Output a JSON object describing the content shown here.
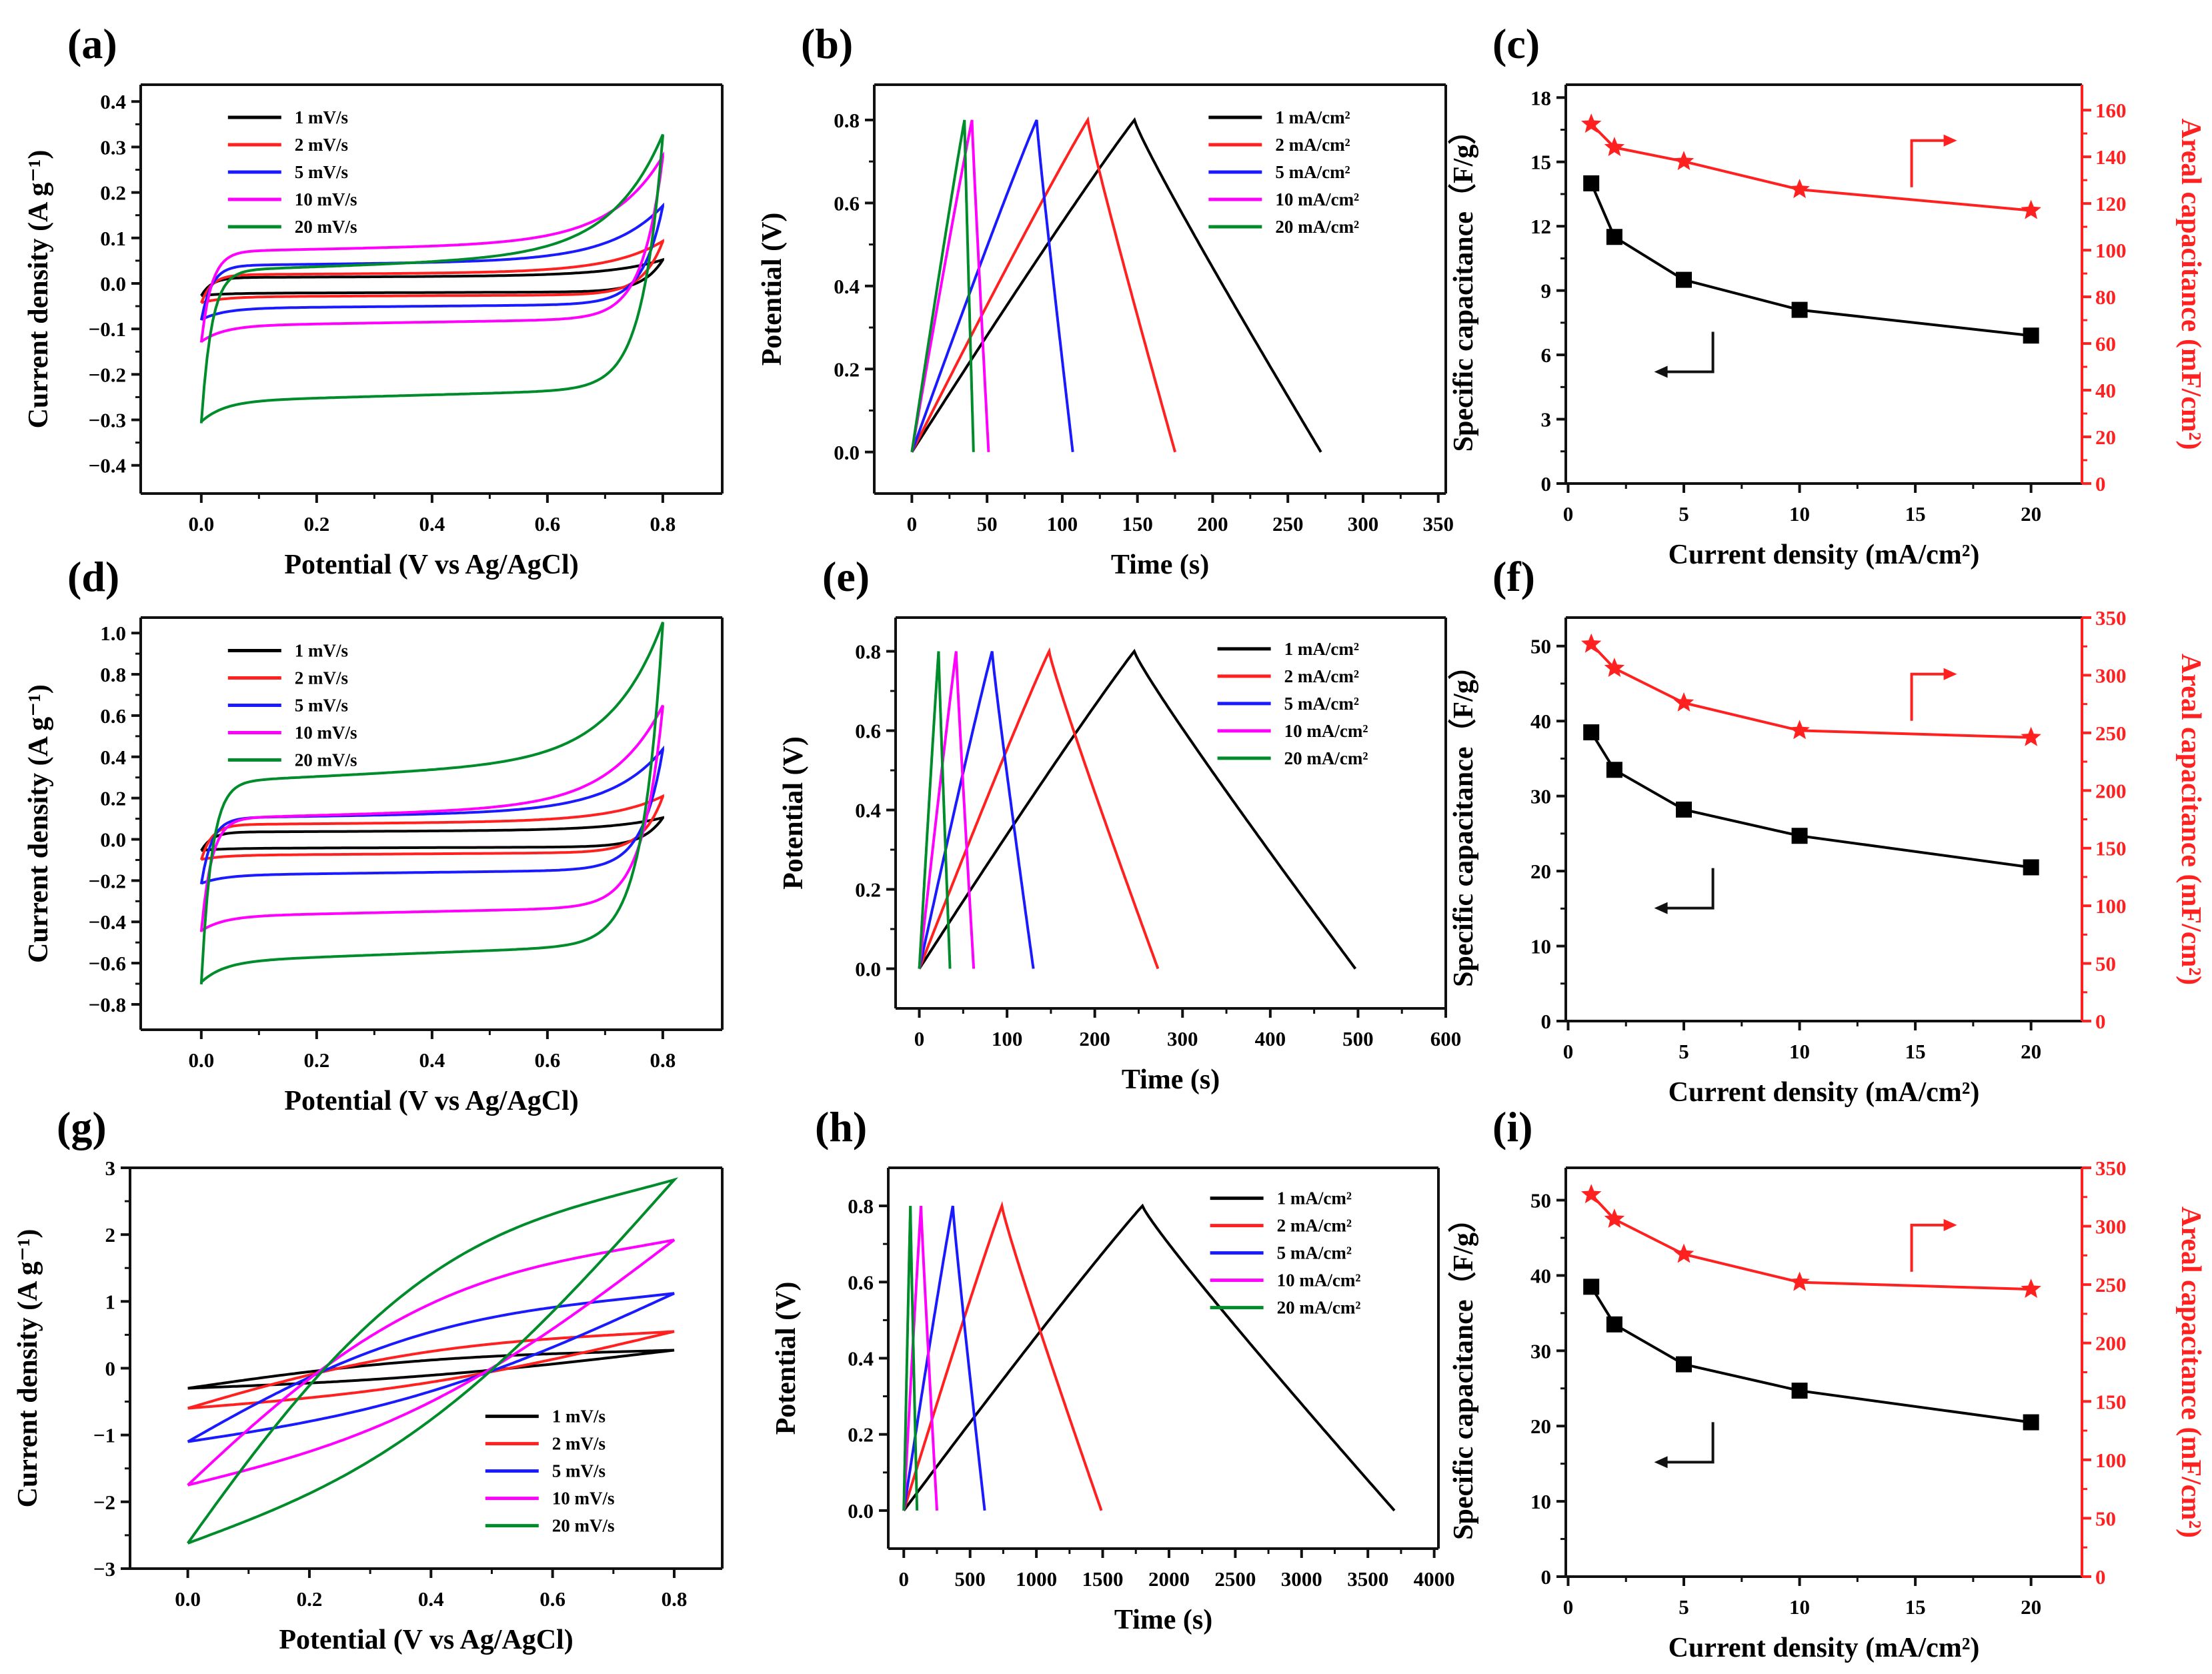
{
  "chart_data": [
    {
      "panel": "(a)",
      "type": "line",
      "kind": "cv",
      "xlabel": "Potential (V vs Ag/AgCl)",
      "ylabel": "Current density (A g⁻¹)",
      "xlim": [
        -0.105,
        0.903
      ],
      "ylim": [
        -0.462,
        0.437
      ],
      "xticks": [
        "0.0",
        "0.2",
        "0.4",
        "0.6",
        "0.8"
      ],
      "xtick_values": [
        0,
        0.2,
        0.4,
        0.6,
        0.8
      ],
      "yticks": [
        "-0.4",
        "-0.3",
        "-0.2",
        "-0.1",
        "0.0",
        "0.1",
        "0.2",
        "0.3",
        "0.4"
      ],
      "ytick_values": [
        -0.4,
        -0.3,
        -0.2,
        -0.1,
        0,
        0.1,
        0.2,
        0.3,
        0.4
      ],
      "legend_position": "top-left",
      "series": [
        {
          "name": "1  mV/s",
          "color": "#000000",
          "upper_mid": 0.015,
          "peak": 0.05,
          "lower_mid": -0.02,
          "min": -0.025
        },
        {
          "name": "2  mV/s",
          "color": "#ff2020",
          "upper_mid": 0.022,
          "peak": 0.09,
          "lower_mid": -0.027,
          "min": -0.04
        },
        {
          "name": "5  mV/s",
          "color": "#1a1aff",
          "upper_mid": 0.045,
          "peak": 0.165,
          "lower_mid": -0.05,
          "min": -0.075
        },
        {
          "name": "10  mV/s",
          "color": "#ff00ff",
          "upper_mid": 0.08,
          "peak": 0.27,
          "lower_mid": -0.085,
          "min": -0.12
        },
        {
          "name": "20  mV/s",
          "color": "#008c2a",
          "upper_mid": 0.045,
          "peak": 0.31,
          "lower_mid": -0.245,
          "min": -0.29
        }
      ]
    },
    {
      "panel": "(b)",
      "type": "line",
      "kind": "gcd",
      "xlabel": "Time (s)",
      "ylabel": "Potential (V)",
      "xlim": [
        -25,
        355
      ],
      "ylim": [
        -0.1,
        0.885
      ],
      "xticks": [
        "0",
        "50",
        "100",
        "150",
        "200",
        "250",
        "300",
        "350"
      ],
      "xtick_values": [
        0,
        50,
        100,
        150,
        200,
        250,
        300,
        350
      ],
      "yticks": [
        "0.0",
        "0.2",
        "0.4",
        "0.6",
        "0.8"
      ],
      "ytick_values": [
        0,
        0.2,
        0.4,
        0.6,
        0.8
      ],
      "legend_position": "top-right",
      "series": [
        {
          "name": "1  mA/cm²",
          "color": "#000000",
          "t_peak": 148,
          "t_end": 272
        },
        {
          "name": "2  mA/cm²",
          "color": "#ff2020",
          "t_peak": 117,
          "t_end": 175
        },
        {
          "name": "5  mA/cm²",
          "color": "#1a1aff",
          "t_peak": 83,
          "t_end": 107
        },
        {
          "name": "10  mA/cm²",
          "color": "#ff00ff",
          "t_peak": 40,
          "t_end": 51
        },
        {
          "name": "20  mA/cm²",
          "color": "#008c2a",
          "t_peak": 35,
          "t_end": 41
        }
      ]
    },
    {
      "panel": "(c)",
      "type": "line",
      "kind": "cap",
      "xlabel": "Current density (mA/cm²)",
      "ylabel": "Specific  capacitance（F/g）",
      "ylabel2": "Areal capacitance (mF/cm²)",
      "xlim": [
        -0.1,
        22.2
      ],
      "ylim": [
        0,
        18.6
      ],
      "ylim2": [
        0,
        170.9
      ],
      "xticks": [
        "0",
        "5",
        "10",
        "15",
        "20"
      ],
      "xtick_values": [
        0,
        5,
        10,
        15,
        20
      ],
      "yticks": [
        "0",
        "3",
        "6",
        "9",
        "12",
        "15",
        "18"
      ],
      "ytick_values": [
        0,
        3,
        6,
        9,
        12,
        15,
        18
      ],
      "yticks2": [
        "0",
        "20",
        "40",
        "60",
        "80",
        "100",
        "120",
        "140",
        "160"
      ],
      "ytick2_values": [
        0,
        20,
        40,
        60,
        80,
        100,
        120,
        140,
        160
      ],
      "x": [
        1,
        2,
        5,
        10,
        20
      ],
      "series": [
        {
          "name": "Specific capacitance",
          "axis": "left",
          "color": "#000000",
          "marker": "square",
          "values": [
            14.0,
            11.5,
            9.5,
            8.1,
            6.9
          ]
        },
        {
          "name": "Areal capacitance",
          "axis": "right",
          "color": "#ff2020",
          "marker": "star",
          "values": [
            154,
            144,
            138,
            126,
            117
          ]
        }
      ]
    },
    {
      "panel": "(d)",
      "type": "line",
      "kind": "cv",
      "xlabel": "Potential (V vs Ag/AgCl)",
      "ylabel": "Current density (A g⁻¹)",
      "xlim": [
        -0.105,
        0.903
      ],
      "ylim": [
        -0.923,
        1.075
      ],
      "xticks": [
        "0.0",
        "0.2",
        "0.4",
        "0.6",
        "0.8"
      ],
      "xtick_values": [
        0,
        0.2,
        0.4,
        0.6,
        0.8
      ],
      "yticks": [
        "-0.8",
        "-0.6",
        "-0.4",
        "-0.2",
        "0.0",
        "0.2",
        "0.4",
        "0.6",
        "0.8",
        "1.0"
      ],
      "ytick_values": [
        -0.8,
        -0.6,
        -0.4,
        -0.2,
        0,
        0.2,
        0.4,
        0.6,
        0.8,
        1.0
      ],
      "legend_position": "top-left",
      "series": [
        {
          "name": "1  mV/s",
          "color": "#000000",
          "upper_mid": 0.04,
          "peak": 0.1,
          "lower_mid": -0.04,
          "min": -0.05
        },
        {
          "name": "2  mV/s",
          "color": "#ff2020",
          "upper_mid": 0.08,
          "peak": 0.2,
          "lower_mid": -0.07,
          "min": -0.09
        },
        {
          "name": "5  mV/s",
          "color": "#1a1aff",
          "upper_mid": 0.12,
          "peak": 0.42,
          "lower_mid": -0.16,
          "min": -0.2
        },
        {
          "name": "10  mV/s",
          "color": "#ff00ff",
          "upper_mid": 0.13,
          "peak": 0.62,
          "lower_mid": -0.35,
          "min": -0.42
        },
        {
          "name": "20  mV/s",
          "color": "#008c2a",
          "upper_mid": 0.33,
          "peak": 1.0,
          "lower_mid": -0.55,
          "min": -0.65
        }
      ]
    },
    {
      "panel": "(e)",
      "type": "line",
      "kind": "gcd",
      "xlabel": "Time (s)",
      "ylabel": "Potential (V)",
      "xlim": [
        -27,
        600
      ],
      "ylim": [
        -0.1,
        0.885
      ],
      "xticks": [
        "0",
        "100",
        "200",
        "300",
        "400",
        "500",
        "600"
      ],
      "xtick_values": [
        0,
        100,
        200,
        300,
        400,
        500,
        600
      ],
      "yticks": [
        "0.0",
        "0.2",
        "0.4",
        "0.6",
        "0.8"
      ],
      "ytick_values": [
        0,
        0.2,
        0.4,
        0.6,
        0.8
      ],
      "legend_position": "top-right",
      "series": [
        {
          "name": "1  mA/cm²",
          "color": "#000000",
          "t_peak": 245,
          "t_end": 497
        },
        {
          "name": "2  mA/cm²",
          "color": "#ff2020",
          "t_peak": 148,
          "t_end": 272
        },
        {
          "name": "5  mA/cm²",
          "color": "#1a1aff",
          "t_peak": 83,
          "t_end": 130
        },
        {
          "name": "10  mA/cm²",
          "color": "#ff00ff",
          "t_peak": 42,
          "t_end": 62
        },
        {
          "name": "20  mA/cm²",
          "color": "#008c2a",
          "t_peak": 22,
          "t_end": 35
        }
      ]
    },
    {
      "panel": "(f)",
      "type": "line",
      "kind": "cap",
      "xlabel": "Current  density (mA/cm²)",
      "ylabel": "Specific  capacitance（F/g）",
      "ylabel2": "Areal capacitance (mF/cm²)",
      "xlim": [
        -0.1,
        22.2
      ],
      "ylim": [
        0,
        53.8
      ],
      "ylim2": [
        0,
        350
      ],
      "xticks": [
        "0",
        "5",
        "10",
        "15",
        "20"
      ],
      "xtick_values": [
        0,
        5,
        10,
        15,
        20
      ],
      "yticks": [
        "0",
        "10",
        "20",
        "30",
        "40",
        "50"
      ],
      "ytick_values": [
        0,
        10,
        20,
        30,
        40,
        50
      ],
      "yticks2": [
        "0",
        "50",
        "100",
        "150",
        "200",
        "250",
        "300",
        "350"
      ],
      "ytick2_values": [
        0,
        50,
        100,
        150,
        200,
        250,
        300,
        350
      ],
      "x": [
        1,
        2,
        5,
        10,
        20
      ],
      "series": [
        {
          "name": "Specific capacitance",
          "axis": "left",
          "color": "#000000",
          "marker": "square",
          "values": [
            38.5,
            33.5,
            28.2,
            24.7,
            20.5
          ]
        },
        {
          "name": "Areal capacitance",
          "axis": "right",
          "color": "#ff2020",
          "marker": "star",
          "values": [
            327,
            306,
            276,
            252,
            246
          ]
        }
      ]
    },
    {
      "panel": "(g)",
      "type": "line",
      "kind": "cv-sloped",
      "xlabel": "Potential (V vs Ag/AgCl)",
      "ylabel": "Current density (A g⁻¹)",
      "xlim": [
        -0.095,
        0.879
      ],
      "ylim": [
        -3,
        3
      ],
      "xticks": [
        "0.0",
        "0.2",
        "0.4",
        "0.6",
        "0.8"
      ],
      "xtick_values": [
        0,
        0.2,
        0.4,
        0.6,
        0.8
      ],
      "yticks": [
        "-3",
        "-2",
        "-1",
        "0",
        "1",
        "2",
        "3"
      ],
      "ytick_values": [
        -3,
        -2,
        -1,
        0,
        1,
        2,
        3
      ],
      "legend_position": "bottom-right",
      "series": [
        {
          "name": "1  mV/s",
          "color": "#000000",
          "peak": 0.27,
          "min": -0.3
        },
        {
          "name": "2  mV/s",
          "color": "#ff2020",
          "peak": 0.55,
          "min": -0.6
        },
        {
          "name": "5  mV/s",
          "color": "#1a1aff",
          "peak": 1.12,
          "min": -1.1
        },
        {
          "name": "10  mV/s",
          "color": "#ff00ff",
          "peak": 1.92,
          "min": -1.75
        },
        {
          "name": "20  mV/s",
          "color": "#008c2a",
          "peak": 2.82,
          "min": -2.62
        }
      ]
    },
    {
      "panel": "(h)",
      "type": "line",
      "kind": "gcd",
      "xlabel": "Time (s)",
      "ylabel": "Potential (V)",
      "xlim": [
        -117,
        4032
      ],
      "ylim": [
        -0.1,
        0.9
      ],
      "xticks": [
        "0",
        "500",
        "1000",
        "1500",
        "2000",
        "2500",
        "3000",
        "3500",
        "4000"
      ],
      "xtick_values": [
        0,
        500,
        1000,
        1500,
        2000,
        2500,
        3000,
        3500,
        4000
      ],
      "yticks": [
        "0.0",
        "0.2",
        "0.4",
        "0.6",
        "0.8"
      ],
      "ytick_values": [
        0,
        0.2,
        0.4,
        0.6,
        0.8
      ],
      "legend_position": "top-right",
      "series": [
        {
          "name": "1  mA/cm²",
          "color": "#000000",
          "t_peak": 1800,
          "t_end": 3700
        },
        {
          "name": "2  mA/cm²",
          "color": "#ff2020",
          "t_peak": 740,
          "t_end": 1490
        },
        {
          "name": "5  mA/cm²",
          "color": "#1a1aff",
          "t_peak": 370,
          "t_end": 610
        },
        {
          "name": "10  mA/cm²",
          "color": "#ff00ff",
          "t_peak": 130,
          "t_end": 250
        },
        {
          "name": "20  mA/cm²",
          "color": "#008c2a",
          "t_peak": 50,
          "t_end": 100
        }
      ]
    },
    {
      "panel": "(i)",
      "type": "line",
      "kind": "cap",
      "xlabel": "Current  density (mA/cm²)",
      "ylabel": "Specific  capacitance（F/g）",
      "ylabel2": "Areal capacitance (mF/cm²)",
      "xlim": [
        -0.1,
        22.2
      ],
      "ylim": [
        0,
        54.3
      ],
      "ylim2": [
        0,
        350
      ],
      "xticks": [
        "0",
        "5",
        "10",
        "15",
        "20"
      ],
      "xtick_values": [
        0,
        5,
        10,
        15,
        20
      ],
      "yticks": [
        "0",
        "10",
        "20",
        "30",
        "40",
        "50"
      ],
      "ytick_values": [
        0,
        10,
        20,
        30,
        40,
        50
      ],
      "yticks2": [
        "0",
        "50",
        "100",
        "150",
        "200",
        "250",
        "300",
        "350"
      ],
      "ytick2_values": [
        0,
        50,
        100,
        150,
        200,
        250,
        300,
        350
      ],
      "x": [
        1,
        2,
        5,
        10,
        20
      ],
      "series": [
        {
          "name": "Specific capacitance",
          "axis": "left",
          "color": "#000000",
          "marker": "square",
          "values": [
            38.5,
            33.5,
            28.2,
            24.7,
            20.5
          ]
        },
        {
          "name": "Areal capacitance",
          "axis": "right",
          "color": "#ff2020",
          "marker": "star",
          "values": [
            327,
            306,
            276,
            252,
            246
          ]
        }
      ]
    }
  ]
}
